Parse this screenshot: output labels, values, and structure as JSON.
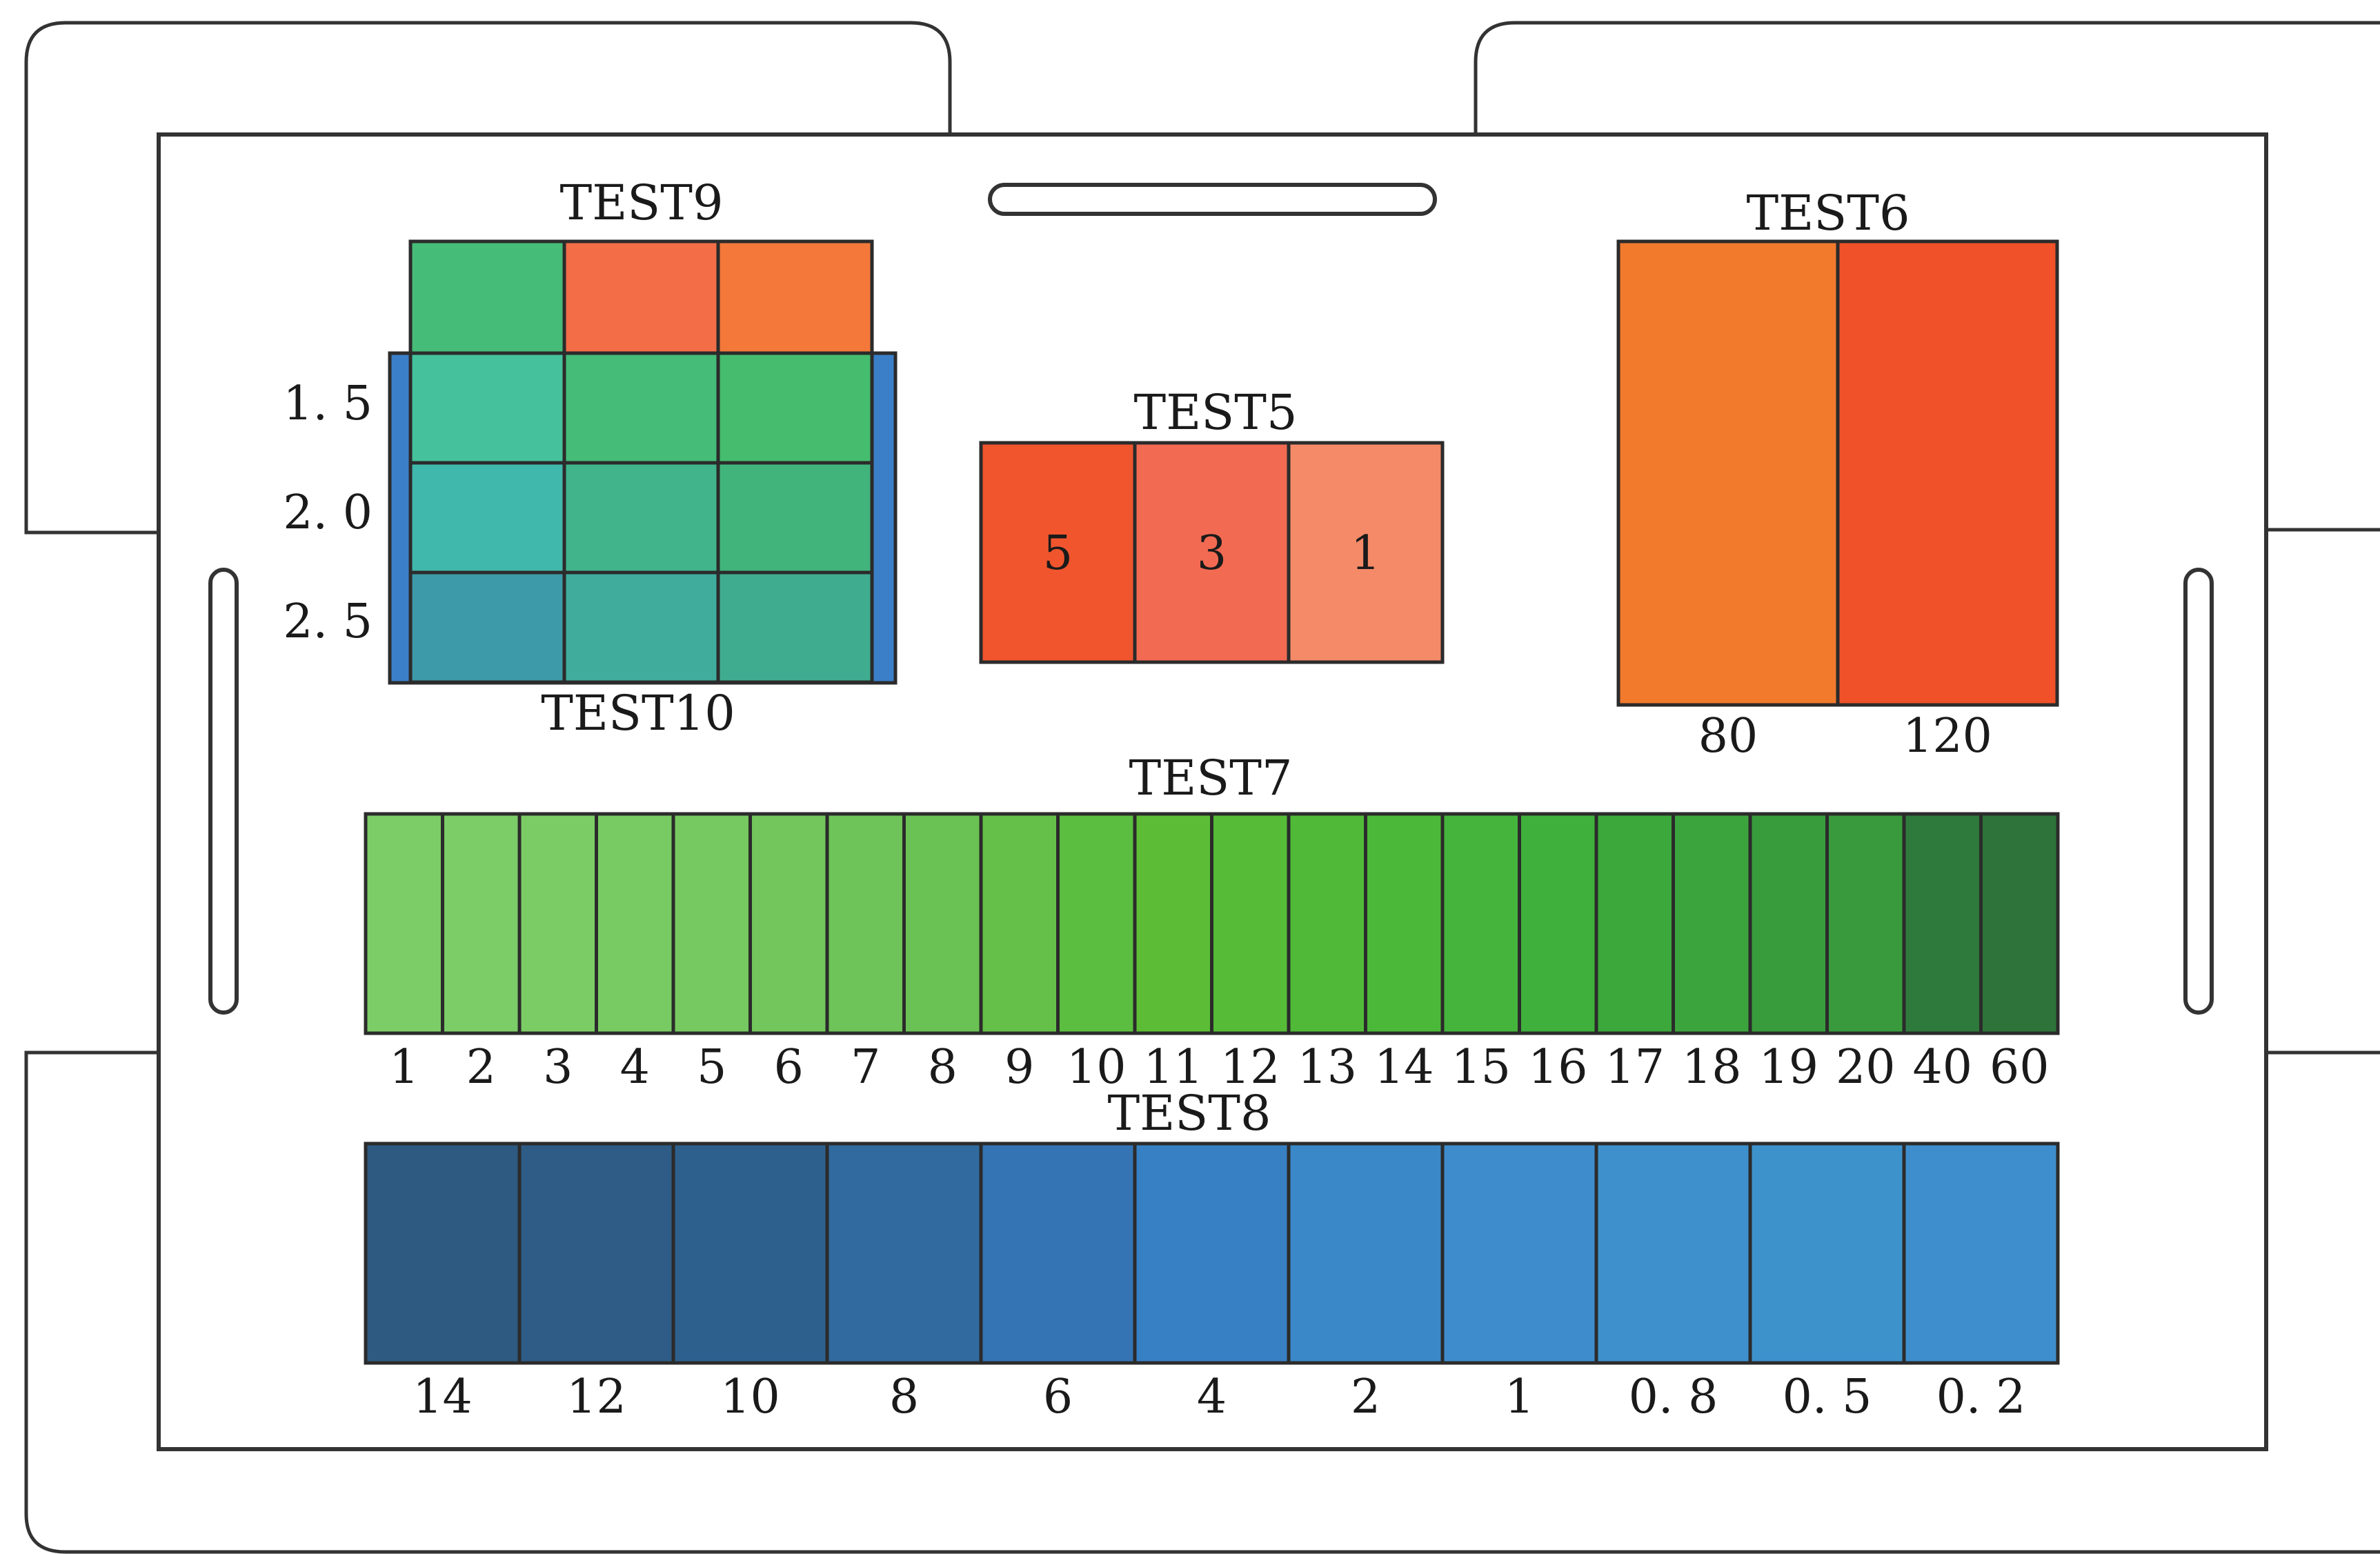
{
  "panels": {
    "test9": {
      "title": "TEST9",
      "colors": [
        "#45bc78",
        "#f36d47",
        "#f3783a"
      ]
    },
    "test10": {
      "title": "TEST10",
      "row_labels": [
        "1. 5",
        "2. 0",
        "2. 5"
      ],
      "cell_colors": [
        [
          "#45c29c",
          "#45bc78",
          "#45bc6e"
        ],
        [
          "#41b8ac",
          "#41b48c",
          "#41b47c"
        ],
        [
          "#3d9aa8",
          "#3fac9c",
          "#3fac90"
        ]
      ],
      "edge_color": "#3b7fc8"
    },
    "test5": {
      "title": "TEST5",
      "values": [
        "5",
        "3",
        "1"
      ],
      "colors": [
        "#f0552e",
        "#f26a52",
        "#f58a68"
      ]
    },
    "test6": {
      "title": "TEST6",
      "values": [
        "80",
        "120"
      ],
      "colors": [
        "#f27a2d",
        "#f05128"
      ]
    },
    "test7": {
      "title": "TEST7",
      "values": [
        "1",
        "2",
        "3",
        "4",
        "5",
        "6",
        "7",
        "8",
        "9",
        "10",
        "11",
        "12",
        "13",
        "14",
        "15",
        "16",
        "17",
        "18",
        "19",
        "20",
        "40",
        "60"
      ],
      "colors": [
        "#7ccc68",
        "#7ccc68",
        "#7ccc66",
        "#78ca62",
        "#76c860",
        "#72c65c",
        "#6ec458",
        "#6ac254",
        "#64c048",
        "#5cbe40",
        "#5cbc36",
        "#56bc38",
        "#50ba38",
        "#4cb83a",
        "#44b43c",
        "#40b03c",
        "#3ca83c",
        "#3ca43c",
        "#389c3c",
        "#389a3c",
        "#2e7a3c",
        "#2e743a"
      ]
    },
    "test8": {
      "title": "TEST8",
      "values": [
        "14",
        "12",
        "10",
        "8",
        "6",
        "4",
        "2",
        "1",
        "0. 8",
        "0. 5",
        "0. 2"
      ],
      "colors": [
        "#2e5a82",
        "#2e5c86",
        "#2e608e",
        "#306a9e",
        "#3474b4",
        "#3880c4",
        "#3a88c8",
        "#3e8ccc",
        "#3e90cc",
        "#3e92cc",
        "#3e8ece"
      ]
    }
  }
}
